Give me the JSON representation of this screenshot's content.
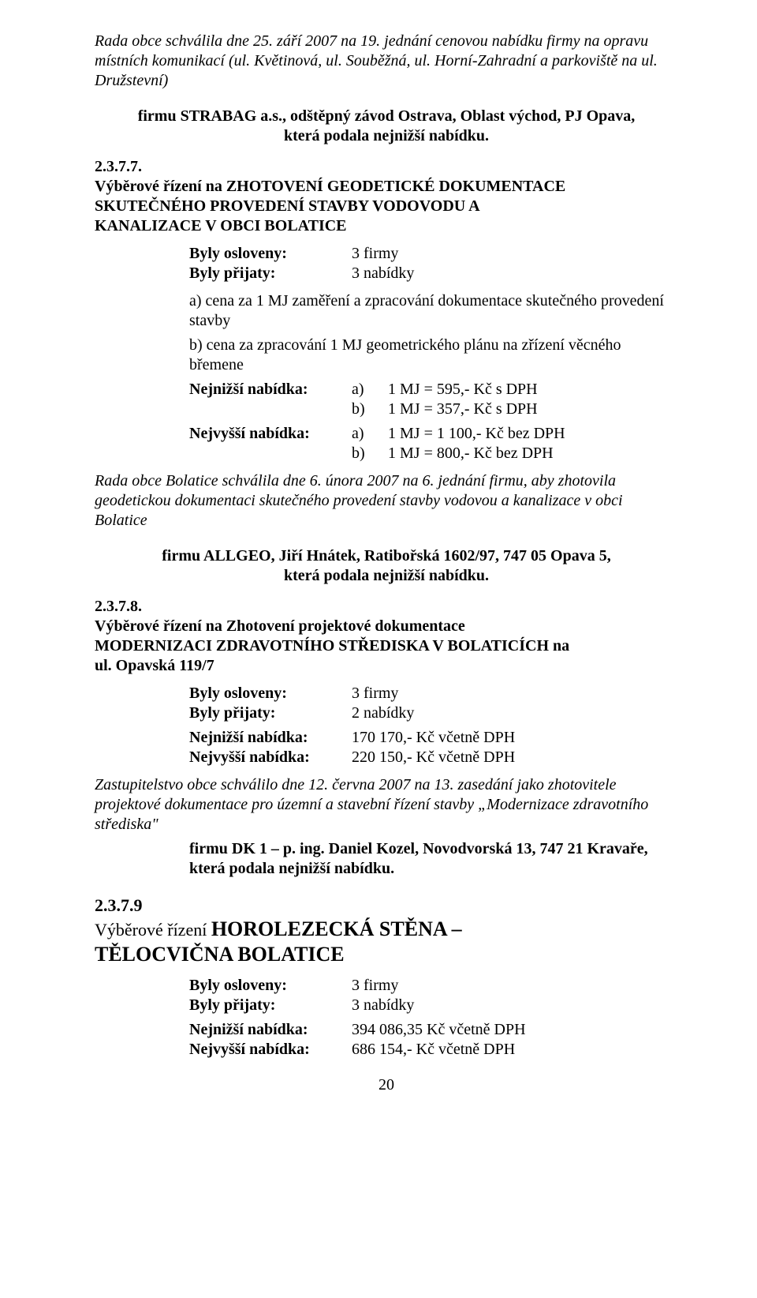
{
  "intro": {
    "p1": "Rada obce schválila dne 25. září 2007 na 19. jednání cenovou nabídku firmy na opravu místních komunikací (ul. Květinová, ul. Souběžná, ul. Horní-Zahradní a parkoviště na ul. Družstevní)",
    "firm_line1": "firmu STRABAG a.s., odštěpný závod Ostrava, Oblast východ, PJ Opava,",
    "firm_line2": "která podala nejnižší nabídku."
  },
  "s237_7": {
    "num": "2.3.7.7.",
    "title": "Výběrové řízení na ZHOTOVENÍ GEODETICKÉ DOKUMENTACE SKUTEČNÉHO PROVEDENÍ STAVBY VODOVODU A KANALIZACE V OBCI BOLATICE",
    "osloveny_label": "Byly osloveny:",
    "osloveny_val": "3 firmy",
    "prijaty_label": "Byly přijaty:",
    "prijaty_val": "3 nabídky",
    "crit_a": "a) cena za 1 MJ zaměření  a zpracování  dokumentace skutečného provedení stavby",
    "crit_b": "b) cena za zpracování 1 MJ geometrického plánu na zřízení věcného břemene",
    "nejnizsi_label": "Nejnižší nabídka:",
    "nejvyssi_label": "Nejvyšší nabídka:",
    "low_a": "1 MJ = 595,- Kč s DPH",
    "low_b": "1 MJ = 357,- Kč s DPH",
    "high_a": "1 MJ =  1 100,- Kč bez DPH",
    "high_b": "1 MJ =     800,- Kč bez DPH",
    "resolution": "Rada obce Bolatice schválila dne 6. února 2007 na 6. jednání firmu, aby zhotovila geodetickou dokumentaci skutečného provedení stavby vodovou a kanalizace v obci Bolatice",
    "firm_line1": "firmu ALLGEO, Jiří Hnátek, Ratibořská 1602/97, 747 05 Opava 5,",
    "firm_line2": "která podala nejnižší nabídku."
  },
  "s237_8": {
    "num": "2.3.7.8.",
    "title": "Výběrové řízení na Zhotovení projektové dokumentace MODERNIZACI ZDRAVOTNÍHO STŘEDISKA V BOLATICÍCH  na ul. Opavská 119/7",
    "osloveny_label": "Byly osloveny:",
    "osloveny_val": "3 firmy",
    "prijaty_label": "Byly přijaty:",
    "prijaty_val": "2 nabídky",
    "nejnizsi_label": "Nejnižší nabídka:",
    "nejnizsi_val": "170 170,- Kč včetně DPH",
    "nejvyssi_label": "Nejvyšší nabídka:",
    "nejvyssi_val": "220 150,- Kč včetně DPH",
    "resolution": "Zastupitelstvo obce schválilo dne 12. června 2007 na 13. zasedání jako zhotovitele projektové dokumentace pro územní a stavební řízení stavby „Modernizace zdravotního střediska\"",
    "firm_line1": "firmu DK 1 – p. ing. Daniel Kozel, Novodvorská 13, 747 21 Kravaře,",
    "firm_line2": " která podala nejnižší nabídku."
  },
  "s237_9": {
    "num": "2.3.7.9",
    "title_lead": "Výběrové řízení ",
    "title_big": "HOROLEZECKÁ STĚNA – TĚLOCVIČNA BOLATICE",
    "osloveny_label": "Byly osloveny:",
    "osloveny_val": "3 firmy",
    "prijaty_label": "Byly přijaty:",
    "prijaty_val": "3 nabídky",
    "nejnizsi_label": "Nejnižší nabídka:",
    "nejnizsi_val": "394 086,35 Kč včetně DPH",
    "nejvyssi_label": "Nejvyšší nabídka:",
    "nejvyssi_val": "686 154,- Kč včetně DPH"
  },
  "labels": {
    "a": "a)",
    "b": "b)"
  },
  "page_number": "20"
}
